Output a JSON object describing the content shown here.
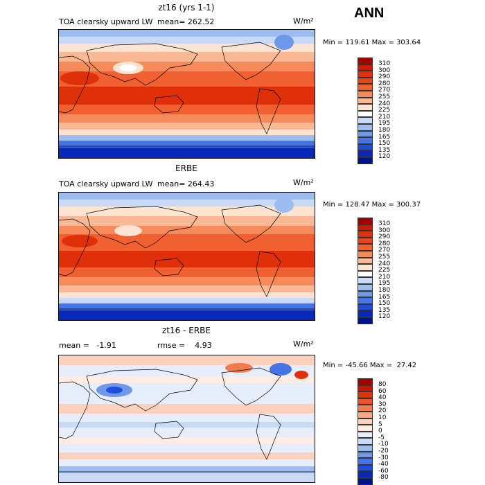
{
  "season": "ANN",
  "units_label": "W/m²",
  "panels": [
    {
      "title": "zt16 (yrs 1-1)",
      "left_label": "TOA clearsky upward LW",
      "mean_text": "mean= 262.52",
      "rmse_text": "",
      "minmax_text": "Min = 119.61 Max = 303.64",
      "colorbar": {
        "labels": [
          "310",
          "300",
          "290",
          "280",
          "270",
          "255",
          "240",
          "225",
          "210",
          "195",
          "180",
          "165",
          "150",
          "135",
          "120"
        ],
        "colors": [
          "#a50000",
          "#cc1a00",
          "#e0300a",
          "#e8461a",
          "#f06030",
          "#f58a5a",
          "#fbb894",
          "#fde4d2",
          "#ffffff",
          "#c8daf5",
          "#9dbdf0",
          "#6f98ea",
          "#4574e6",
          "#1f4fd9",
          "#0a28b8",
          "#00138a"
        ]
      }
    },
    {
      "title": "ERBE",
      "left_label": "TOA clearsky upward LW",
      "mean_text": "mean= 264.43",
      "rmse_text": "",
      "minmax_text": "Min = 128.47 Max = 300.37",
      "colorbar": {
        "labels": [
          "310",
          "300",
          "290",
          "280",
          "270",
          "255",
          "240",
          "225",
          "210",
          "195",
          "180",
          "165",
          "150",
          "135",
          "120"
        ],
        "colors": [
          "#a50000",
          "#cc1a00",
          "#e0300a",
          "#e8461a",
          "#f06030",
          "#f58a5a",
          "#fbb894",
          "#fde4d2",
          "#ffffff",
          "#c8daf5",
          "#9dbdf0",
          "#6f98ea",
          "#4574e6",
          "#1f4fd9",
          "#0a28b8",
          "#00138a"
        ]
      }
    },
    {
      "title": "zt16 - ERBE",
      "left_label": "mean =   -1.91",
      "mean_text": "",
      "rmse_text": "rmse =    4.93",
      "minmax_text": "Min = -45.66 Max =  27.42",
      "colorbar": {
        "labels": [
          "80",
          "60",
          "40",
          "30",
          "20",
          "10",
          "5",
          "0",
          "-5",
          "-10",
          "-20",
          "-30",
          "-40",
          "-60",
          "-80"
        ],
        "colors": [
          "#a50000",
          "#c81400",
          "#e0300a",
          "#ea5428",
          "#f27a4e",
          "#f8a888",
          "#fcd2bf",
          "#feece2",
          "#e6eefc",
          "#c8daf5",
          "#9dbdf0",
          "#6f98ea",
          "#4574e6",
          "#1f4fd9",
          "#0a28b8",
          "#00138a"
        ]
      }
    }
  ]
}
